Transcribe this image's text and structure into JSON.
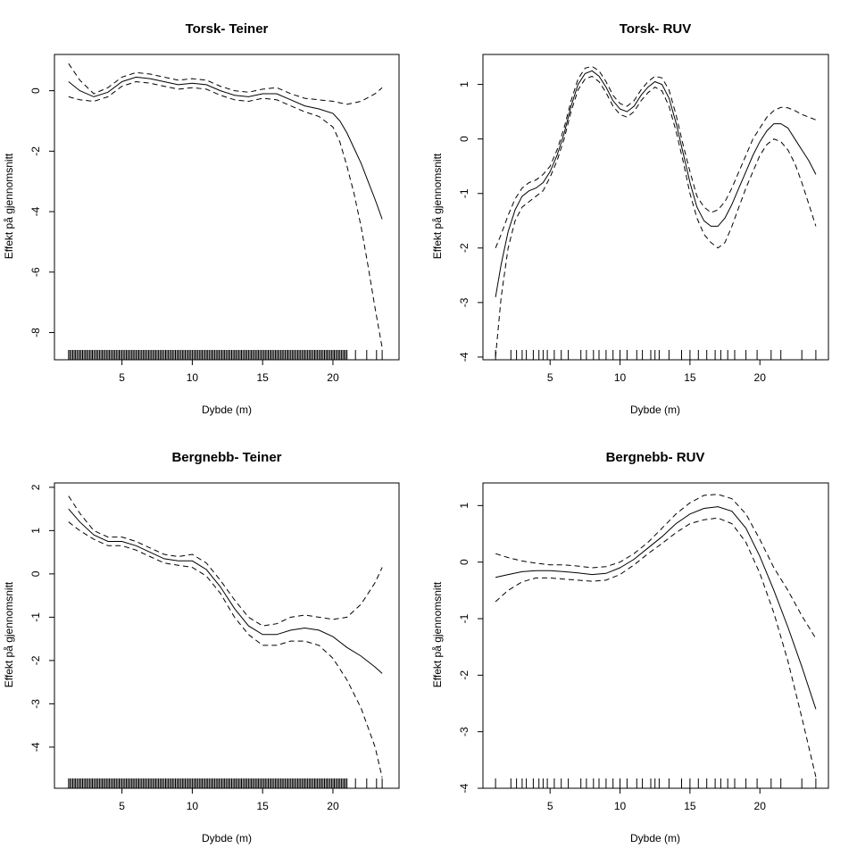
{
  "chart_data": [
    {
      "type": "line",
      "title": "Torsk- Teiner",
      "xlabel": "Dybde (m)",
      "ylabel": "Effekt på gjennomsnitt",
      "xlim": [
        0.2,
        24.7
      ],
      "ylim": [
        -8.9,
        1.2
      ],
      "xticks": [
        5,
        10,
        15,
        20
      ],
      "yticks": [
        0,
        -2,
        -4,
        -6,
        -8
      ],
      "series": [
        {
          "name": "fit",
          "style": "solid",
          "x": [
            1.2,
            2,
            3,
            4,
            5,
            6,
            7,
            8,
            9,
            10,
            11,
            12,
            13,
            14,
            15,
            16,
            17,
            18,
            19,
            20,
            20.5,
            21,
            21.5,
            22,
            22.5,
            23,
            23.5
          ],
          "y": [
            0.3,
            0,
            -0.2,
            -0.05,
            0.3,
            0.45,
            0.4,
            0.3,
            0.2,
            0.25,
            0.2,
            0,
            -0.15,
            -0.2,
            -0.1,
            -0.1,
            -0.3,
            -0.5,
            -0.6,
            -0.75,
            -1.0,
            -1.4,
            -1.9,
            -2.4,
            -3.0,
            -3.6,
            -4.25
          ]
        },
        {
          "name": "upper",
          "style": "dashed",
          "x": [
            1.2,
            2,
            3,
            4,
            5,
            6,
            7,
            8,
            9,
            10,
            11,
            12,
            13,
            14,
            15,
            16,
            17,
            18,
            19,
            20,
            21,
            22,
            23,
            23.5
          ],
          "y": [
            0.9,
            0.35,
            -0.1,
            0.1,
            0.45,
            0.6,
            0.55,
            0.45,
            0.35,
            0.4,
            0.35,
            0.15,
            0,
            -0.05,
            0.05,
            0.1,
            -0.1,
            -0.25,
            -0.3,
            -0.35,
            -0.45,
            -0.35,
            -0.1,
            0.1
          ]
        },
        {
          "name": "lower",
          "style": "dashed",
          "x": [
            1.2,
            2,
            3,
            4,
            5,
            6,
            7,
            8,
            9,
            10,
            11,
            12,
            13,
            14,
            15,
            16,
            17,
            18,
            19,
            20,
            20.5,
            21,
            21.5,
            22,
            22.5,
            23,
            23.5
          ],
          "y": [
            -0.2,
            -0.3,
            -0.35,
            -0.2,
            0.15,
            0.3,
            0.25,
            0.15,
            0.05,
            0.1,
            0.05,
            -0.15,
            -0.3,
            -0.35,
            -0.25,
            -0.3,
            -0.5,
            -0.7,
            -0.85,
            -1.2,
            -1.7,
            -2.5,
            -3.4,
            -4.5,
            -5.8,
            -7.2,
            -8.5
          ]
        }
      ],
      "rug": "dense",
      "rug_start": 1.2,
      "rug_end": 21.0,
      "rug_step": 0.1,
      "rug_extra": [
        21.6,
        22.4,
        23.1,
        23.5
      ]
    },
    {
      "type": "line",
      "title": "Torsk- RUV",
      "xlabel": "Dybde (m)",
      "ylabel": "Effekt på gjennomsnitt",
      "xlim": [
        0.2,
        24.9
      ],
      "ylim": [
        -4.05,
        1.55
      ],
      "xticks": [
        5,
        10,
        15,
        20
      ],
      "yticks": [
        1,
        0,
        -1,
        -2,
        -3,
        -4
      ],
      "series": [
        {
          "name": "fit",
          "style": "solid",
          "x": [
            1.1,
            1.5,
            2,
            2.5,
            3,
            3.5,
            4,
            4.5,
            5,
            5.5,
            6,
            6.5,
            7,
            7.5,
            8,
            8.5,
            9,
            9.5,
            10,
            10.5,
            11,
            11.5,
            12,
            12.5,
            13,
            13.5,
            14,
            14.5,
            15,
            15.5,
            16,
            16.5,
            17,
            17.5,
            18,
            18.5,
            19,
            19.5,
            20,
            20.5,
            21,
            21.5,
            22,
            22.5,
            23,
            23.5,
            24
          ],
          "y": [
            -2.9,
            -2.3,
            -1.7,
            -1.3,
            -1.05,
            -0.95,
            -0.9,
            -0.8,
            -0.6,
            -0.3,
            0.1,
            0.6,
            1.0,
            1.2,
            1.25,
            1.15,
            0.95,
            0.7,
            0.55,
            0.5,
            0.6,
            0.8,
            0.95,
            1.05,
            1.0,
            0.75,
            0.3,
            -0.25,
            -0.8,
            -1.25,
            -1.5,
            -1.6,
            -1.6,
            -1.45,
            -1.2,
            -0.9,
            -0.6,
            -0.3,
            -0.05,
            0.15,
            0.28,
            0.28,
            0.2,
            0.0,
            -0.2,
            -0.4,
            -0.65
          ]
        },
        {
          "name": "upper",
          "style": "dashed",
          "x": [
            1.1,
            1.5,
            2,
            2.5,
            3,
            3.5,
            4,
            4.5,
            5,
            5.5,
            6,
            6.5,
            7,
            7.5,
            8,
            8.5,
            9,
            9.5,
            10,
            10.5,
            11,
            11.5,
            12,
            12.5,
            13,
            13.5,
            14,
            14.5,
            15,
            15.5,
            16,
            16.5,
            17,
            17.5,
            18,
            18.5,
            19,
            19.5,
            20,
            20.5,
            21,
            21.5,
            22,
            22.5,
            23,
            23.5,
            24
          ],
          "y": [
            -2.0,
            -1.75,
            -1.4,
            -1.1,
            -0.9,
            -0.8,
            -0.75,
            -0.65,
            -0.5,
            -0.2,
            0.2,
            0.7,
            1.1,
            1.3,
            1.33,
            1.25,
            1.05,
            0.8,
            0.65,
            0.6,
            0.7,
            0.9,
            1.05,
            1.15,
            1.12,
            0.9,
            0.45,
            -0.1,
            -0.6,
            -1.05,
            -1.25,
            -1.35,
            -1.3,
            -1.15,
            -0.9,
            -0.6,
            -0.3,
            0.0,
            0.2,
            0.4,
            0.52,
            0.58,
            0.57,
            0.52,
            0.45,
            0.4,
            0.35
          ]
        },
        {
          "name": "lower",
          "style": "dashed",
          "x": [
            1.1,
            1.5,
            2,
            2.5,
            3,
            3.5,
            4,
            4.5,
            5,
            5.5,
            6,
            6.5,
            7,
            7.5,
            8,
            8.5,
            9,
            9.5,
            10,
            10.5,
            11,
            11.5,
            12,
            12.5,
            13,
            13.5,
            14,
            14.5,
            15,
            15.5,
            16,
            16.5,
            17,
            17.5,
            18,
            18.5,
            19,
            19.5,
            20,
            20.5,
            21,
            21.5,
            22,
            22.5,
            23,
            23.5,
            24
          ],
          "y": [
            -4.0,
            -2.9,
            -2.0,
            -1.5,
            -1.25,
            -1.15,
            -1.05,
            -0.95,
            -0.7,
            -0.4,
            0.0,
            0.5,
            0.9,
            1.1,
            1.15,
            1.05,
            0.85,
            0.6,
            0.45,
            0.4,
            0.5,
            0.7,
            0.85,
            0.95,
            0.88,
            0.6,
            0.15,
            -0.4,
            -1.0,
            -1.45,
            -1.75,
            -1.9,
            -2.0,
            -1.9,
            -1.6,
            -1.25,
            -0.9,
            -0.6,
            -0.3,
            -0.1,
            0.0,
            -0.05,
            -0.2,
            -0.45,
            -0.8,
            -1.2,
            -1.6
          ]
        }
      ],
      "rug": "sparse",
      "rug_values": [
        1.1,
        2.2,
        2.6,
        3.0,
        3.3,
        3.8,
        4.2,
        4.5,
        4.8,
        5.3,
        5.8,
        6.3,
        7.2,
        7.6,
        8.1,
        8.5,
        9.0,
        9.5,
        10.0,
        10.5,
        11.2,
        11.6,
        12.2,
        12.5,
        12.8,
        13.5,
        14.4,
        15.0,
        15.6,
        16.2,
        16.8,
        17.2,
        17.7,
        18.2,
        19.0,
        19.8,
        20.8,
        21.5,
        23.0,
        24.0
      ]
    },
    {
      "type": "line",
      "title": "Bergnebb- Teiner",
      "xlabel": "Dybde (m)",
      "ylabel": "Effekt på gjennomsnitt",
      "xlim": [
        0.2,
        24.7
      ],
      "ylim": [
        -4.95,
        2.1
      ],
      "xticks": [
        5,
        10,
        15,
        20
      ],
      "yticks": [
        2,
        1,
        0,
        -1,
        -2,
        -3,
        -4
      ],
      "series": [
        {
          "name": "fit",
          "style": "solid",
          "x": [
            1.2,
            2,
            3,
            4,
            5,
            6,
            7,
            8,
            9,
            10,
            11,
            12,
            13,
            14,
            15,
            16,
            17,
            18,
            19,
            20,
            21,
            22,
            23,
            23.5
          ],
          "y": [
            1.5,
            1.2,
            0.9,
            0.75,
            0.75,
            0.65,
            0.5,
            0.35,
            0.3,
            0.3,
            0.1,
            -0.3,
            -0.8,
            -1.2,
            -1.4,
            -1.4,
            -1.3,
            -1.25,
            -1.3,
            -1.45,
            -1.7,
            -1.9,
            -2.15,
            -2.3
          ]
        },
        {
          "name": "upper",
          "style": "dashed",
          "x": [
            1.2,
            2,
            3,
            4,
            5,
            6,
            7,
            8,
            9,
            10,
            11,
            12,
            13,
            14,
            15,
            16,
            17,
            18,
            19,
            20,
            21,
            22,
            23,
            23.5
          ],
          "y": [
            1.8,
            1.4,
            1.0,
            0.85,
            0.85,
            0.75,
            0.6,
            0.45,
            0.4,
            0.45,
            0.25,
            -0.15,
            -0.6,
            -1.0,
            -1.2,
            -1.15,
            -1.0,
            -0.95,
            -1.0,
            -1.05,
            -1.0,
            -0.7,
            -0.2,
            0.15
          ]
        },
        {
          "name": "lower",
          "style": "dashed",
          "x": [
            1.2,
            2,
            3,
            4,
            5,
            6,
            7,
            8,
            9,
            10,
            11,
            12,
            13,
            14,
            15,
            16,
            17,
            18,
            19,
            20,
            21,
            22,
            23,
            23.5
          ],
          "y": [
            1.2,
            1.0,
            0.8,
            0.65,
            0.65,
            0.55,
            0.4,
            0.25,
            0.2,
            0.15,
            -0.05,
            -0.45,
            -1.0,
            -1.4,
            -1.65,
            -1.65,
            -1.55,
            -1.55,
            -1.65,
            -1.95,
            -2.45,
            -3.1,
            -4.0,
            -4.7
          ]
        }
      ],
      "rug": "dense",
      "rug_start": 1.2,
      "rug_end": 21.0,
      "rug_step": 0.1,
      "rug_extra": [
        21.6,
        22.4,
        23.1,
        23.5
      ]
    },
    {
      "type": "line",
      "title": "Bergnebb- RUV",
      "xlabel": "Dybde (m)",
      "ylabel": "Effekt på gjennomsnitt",
      "xlim": [
        0.2,
        24.9
      ],
      "ylim": [
        -4.0,
        1.4
      ],
      "xticks": [
        5,
        10,
        15,
        20
      ],
      "yticks": [
        1,
        0,
        -1,
        -2,
        -3,
        -4
      ],
      "series": [
        {
          "name": "fit",
          "style": "solid",
          "x": [
            1.1,
            2,
            3,
            4,
            5,
            6,
            7,
            8,
            9,
            10,
            11,
            12,
            13,
            14,
            15,
            16,
            17,
            18,
            19,
            20,
            21,
            22,
            23,
            24
          ],
          "y": [
            -0.27,
            -0.22,
            -0.17,
            -0.15,
            -0.15,
            -0.17,
            -0.19,
            -0.22,
            -0.2,
            -0.1,
            0.05,
            0.25,
            0.45,
            0.68,
            0.85,
            0.95,
            0.98,
            0.9,
            0.6,
            0.1,
            -0.5,
            -1.15,
            -1.85,
            -2.6
          ]
        },
        {
          "name": "upper",
          "style": "dashed",
          "x": [
            1.1,
            2,
            3,
            4,
            5,
            6,
            7,
            8,
            9,
            10,
            11,
            12,
            13,
            14,
            15,
            16,
            17,
            18,
            19,
            20,
            21,
            22,
            23,
            24
          ],
          "y": [
            0.15,
            0.08,
            0.02,
            -0.02,
            -0.05,
            -0.05,
            -0.07,
            -0.1,
            -0.08,
            0.0,
            0.15,
            0.35,
            0.6,
            0.85,
            1.05,
            1.18,
            1.2,
            1.12,
            0.85,
            0.4,
            -0.1,
            -0.5,
            -0.95,
            -1.35
          ]
        },
        {
          "name": "lower",
          "style": "dashed",
          "x": [
            1.1,
            2,
            3,
            4,
            5,
            6,
            7,
            8,
            9,
            10,
            11,
            12,
            13,
            14,
            15,
            16,
            17,
            18,
            19,
            20,
            21,
            22,
            23,
            24
          ],
          "y": [
            -0.7,
            -0.5,
            -0.35,
            -0.28,
            -0.28,
            -0.3,
            -0.32,
            -0.34,
            -0.32,
            -0.22,
            -0.05,
            0.15,
            0.33,
            0.52,
            0.68,
            0.75,
            0.78,
            0.68,
            0.35,
            -0.2,
            -0.9,
            -1.75,
            -2.75,
            -3.8
          ]
        }
      ],
      "rug": "sparse",
      "rug_values": [
        1.1,
        2.2,
        2.6,
        3.0,
        3.3,
        3.8,
        4.2,
        4.5,
        4.8,
        5.3,
        5.8,
        6.3,
        7.2,
        7.6,
        8.1,
        8.5,
        9.0,
        9.5,
        10.0,
        10.5,
        11.2,
        11.6,
        12.2,
        12.5,
        12.8,
        13.5,
        14.4,
        15.0,
        15.6,
        16.2,
        16.8,
        17.2,
        17.7,
        18.2,
        19.0,
        19.8,
        20.8,
        21.5,
        23.0,
        24.0
      ]
    }
  ]
}
